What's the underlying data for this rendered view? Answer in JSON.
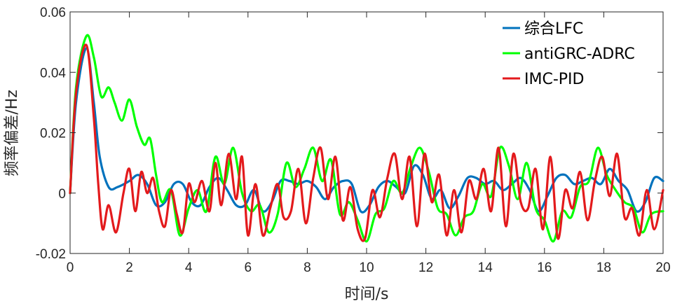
{
  "chart_data": {
    "type": "line",
    "title": "",
    "xlabel": "时间/s",
    "ylabel": "频率偏差/Hz",
    "xlim": [
      0,
      20
    ],
    "ylim": [
      -0.02,
      0.06
    ],
    "xticks": [
      0,
      2,
      4,
      6,
      8,
      10,
      12,
      14,
      16,
      18,
      20
    ],
    "xtick_labels": [
      "0",
      "2",
      "4",
      "6",
      "8",
      "10",
      "12",
      "14",
      "16",
      "18",
      "20"
    ],
    "yticks": [
      -0.02,
      0,
      0.02,
      0.04,
      0.06
    ],
    "ytick_labels": [
      "-0.02",
      "0",
      "0.02",
      "0.04",
      "0.06"
    ],
    "grid": false,
    "legend_position": "top-right",
    "series": [
      {
        "name": "综合LFC",
        "color": "#0072BD",
        "x": [
          0,
          0.2,
          0.55,
          0.8,
          1.0,
          1.3,
          1.6,
          2.0,
          2.3,
          2.6,
          2.9,
          3.2,
          3.5,
          3.8,
          4.1,
          4.4,
          4.7,
          5.0,
          5.3,
          5.6,
          5.9,
          6.2,
          6.5,
          6.8,
          7.1,
          7.4,
          7.7,
          8.0,
          8.3,
          8.6,
          8.9,
          9.2,
          9.5,
          9.8,
          10.1,
          10.4,
          10.7,
          11.0,
          11.3,
          11.6,
          11.9,
          12.2,
          12.5,
          12.8,
          13.1,
          13.4,
          13.7,
          14.0,
          14.3,
          14.6,
          14.9,
          15.2,
          15.5,
          15.8,
          16.1,
          16.4,
          16.7,
          17.0,
          17.3,
          17.6,
          17.9,
          18.2,
          18.5,
          18.8,
          19.1,
          19.4,
          19.7,
          20.0
        ],
        "values": [
          0,
          0.03,
          0.048,
          0.03,
          0.012,
          0.002,
          0.002,
          0.004,
          0.006,
          0.003,
          -0.004,
          -0.003,
          0.003,
          0.003,
          -0.003,
          -0.004,
          0.002,
          0.005,
          0.001,
          -0.004,
          -0.004,
          0.001,
          -0.006,
          -0.003,
          0.004,
          0.004,
          0.003,
          0.004,
          0.002,
          -0.002,
          0.002,
          0.004,
          0.003,
          -0.006,
          -0.004,
          0.002,
          0.004,
          0.002,
          0.0,
          0.009,
          0.006,
          -0.002,
          0.001,
          -0.005,
          -0.001,
          0.005,
          0.005,
          0.003,
          0.004,
          0.001,
          0.003,
          0.005,
          0.001,
          -0.006,
          -0.001,
          0.005,
          0.006,
          0.003,
          0.004,
          0.005,
          0.003,
          0.008,
          0.004,
          0.001,
          -0.006,
          -0.003,
          0.005,
          0.004
        ]
      },
      {
        "name": "antiGRC-ADRC",
        "color": "#00FF00",
        "x": [
          0,
          0.2,
          0.55,
          0.8,
          1.05,
          1.3,
          1.5,
          1.75,
          2.0,
          2.25,
          2.5,
          2.7,
          2.9,
          3.1,
          3.4,
          3.7,
          4.0,
          4.3,
          4.6,
          4.9,
          5.2,
          5.5,
          5.8,
          6.1,
          6.4,
          6.7,
          7.0,
          7.3,
          7.6,
          7.9,
          8.2,
          8.5,
          8.8,
          9.1,
          9.4,
          9.7,
          10.0,
          10.3,
          10.6,
          10.9,
          11.2,
          11.5,
          11.8,
          12.1,
          12.4,
          12.7,
          13.0,
          13.3,
          13.6,
          13.9,
          14.2,
          14.5,
          14.8,
          15.1,
          15.4,
          15.7,
          16.0,
          16.3,
          16.6,
          16.9,
          17.2,
          17.5,
          17.8,
          18.1,
          18.4,
          18.7,
          19.0,
          19.3,
          19.6,
          20.0
        ],
        "values": [
          0,
          0.035,
          0.052,
          0.045,
          0.032,
          0.035,
          0.03,
          0.024,
          0.031,
          0.022,
          0.016,
          0.018,
          0.006,
          -0.003,
          0.001,
          -0.014,
          -0.005,
          0.001,
          -0.006,
          0.012,
          0.003,
          0.015,
          0.0,
          -0.006,
          -0.004,
          -0.013,
          -0.007,
          0.01,
          0.002,
          0.008,
          0.015,
          0.004,
          0.011,
          -0.007,
          -0.003,
          -0.009,
          -0.016,
          -0.007,
          -0.005,
          0.004,
          0.0,
          0.009,
          0.015,
          0.007,
          -0.005,
          -0.007,
          -0.014,
          -0.008,
          -0.006,
          0.003,
          -0.001,
          0.015,
          0.009,
          -0.002,
          0.01,
          -0.005,
          -0.009,
          -0.016,
          -0.006,
          -0.008,
          0.002,
          0.004,
          0.015,
          0.006,
          0.001,
          -0.003,
          -0.005,
          -0.013,
          -0.007,
          -0.006
        ]
      },
      {
        "name": "IMC-PID",
        "color": "#E31A1C",
        "x": [
          0,
          0.2,
          0.55,
          0.8,
          0.95,
          1.1,
          1.3,
          1.55,
          1.8,
          2.0,
          2.2,
          2.4,
          2.6,
          2.8,
          3.0,
          3.2,
          3.4,
          3.6,
          3.8,
          4.0,
          4.2,
          4.45,
          4.7,
          4.9,
          5.1,
          5.35,
          5.6,
          5.8,
          6.0,
          6.25,
          6.5,
          6.75,
          7.0,
          7.2,
          7.45,
          7.7,
          7.95,
          8.2,
          8.45,
          8.7,
          8.95,
          9.2,
          9.45,
          9.7,
          9.95,
          10.2,
          10.45,
          10.7,
          10.95,
          11.2,
          11.45,
          11.7,
          11.95,
          12.2,
          12.45,
          12.7,
          12.95,
          13.2,
          13.45,
          13.7,
          13.95,
          14.2,
          14.45,
          14.7,
          14.95,
          15.2,
          15.45,
          15.7,
          15.95,
          16.2,
          16.45,
          16.7,
          16.95,
          17.2,
          17.45,
          17.7,
          17.95,
          18.2,
          18.45,
          18.7,
          18.95,
          19.2,
          19.45,
          19.7,
          20.0
        ],
        "values": [
          0,
          0.033,
          0.049,
          0.025,
          0.003,
          -0.012,
          -0.004,
          -0.013,
          0.0,
          0.008,
          -0.006,
          0.007,
          0.0,
          0.005,
          -0.006,
          -0.011,
          0.001,
          -0.007,
          -0.013,
          0.003,
          -0.003,
          0.004,
          -0.006,
          0.01,
          -0.004,
          0.013,
          -0.002,
          0.012,
          -0.014,
          0.003,
          -0.014,
          -0.005,
          0.003,
          -0.008,
          -0.006,
          0.008,
          -0.01,
          0.005,
          0.015,
          -0.002,
          0.012,
          -0.009,
          0.002,
          -0.012,
          -0.015,
          0.001,
          -0.008,
          0.005,
          0.013,
          -0.002,
          0.012,
          -0.011,
          0.013,
          -0.003,
          0.006,
          -0.014,
          0.001,
          -0.013,
          0.004,
          -0.002,
          0.008,
          -0.006,
          0.015,
          -0.011,
          0.013,
          -0.003,
          -0.005,
          0.008,
          -0.012,
          0.012,
          -0.015,
          0.001,
          -0.005,
          0.007,
          -0.009,
          0.004,
          0.012,
          -0.001,
          0.013,
          -0.008,
          -0.005,
          -0.014,
          0.001,
          -0.012,
          0.001
        ]
      }
    ]
  }
}
